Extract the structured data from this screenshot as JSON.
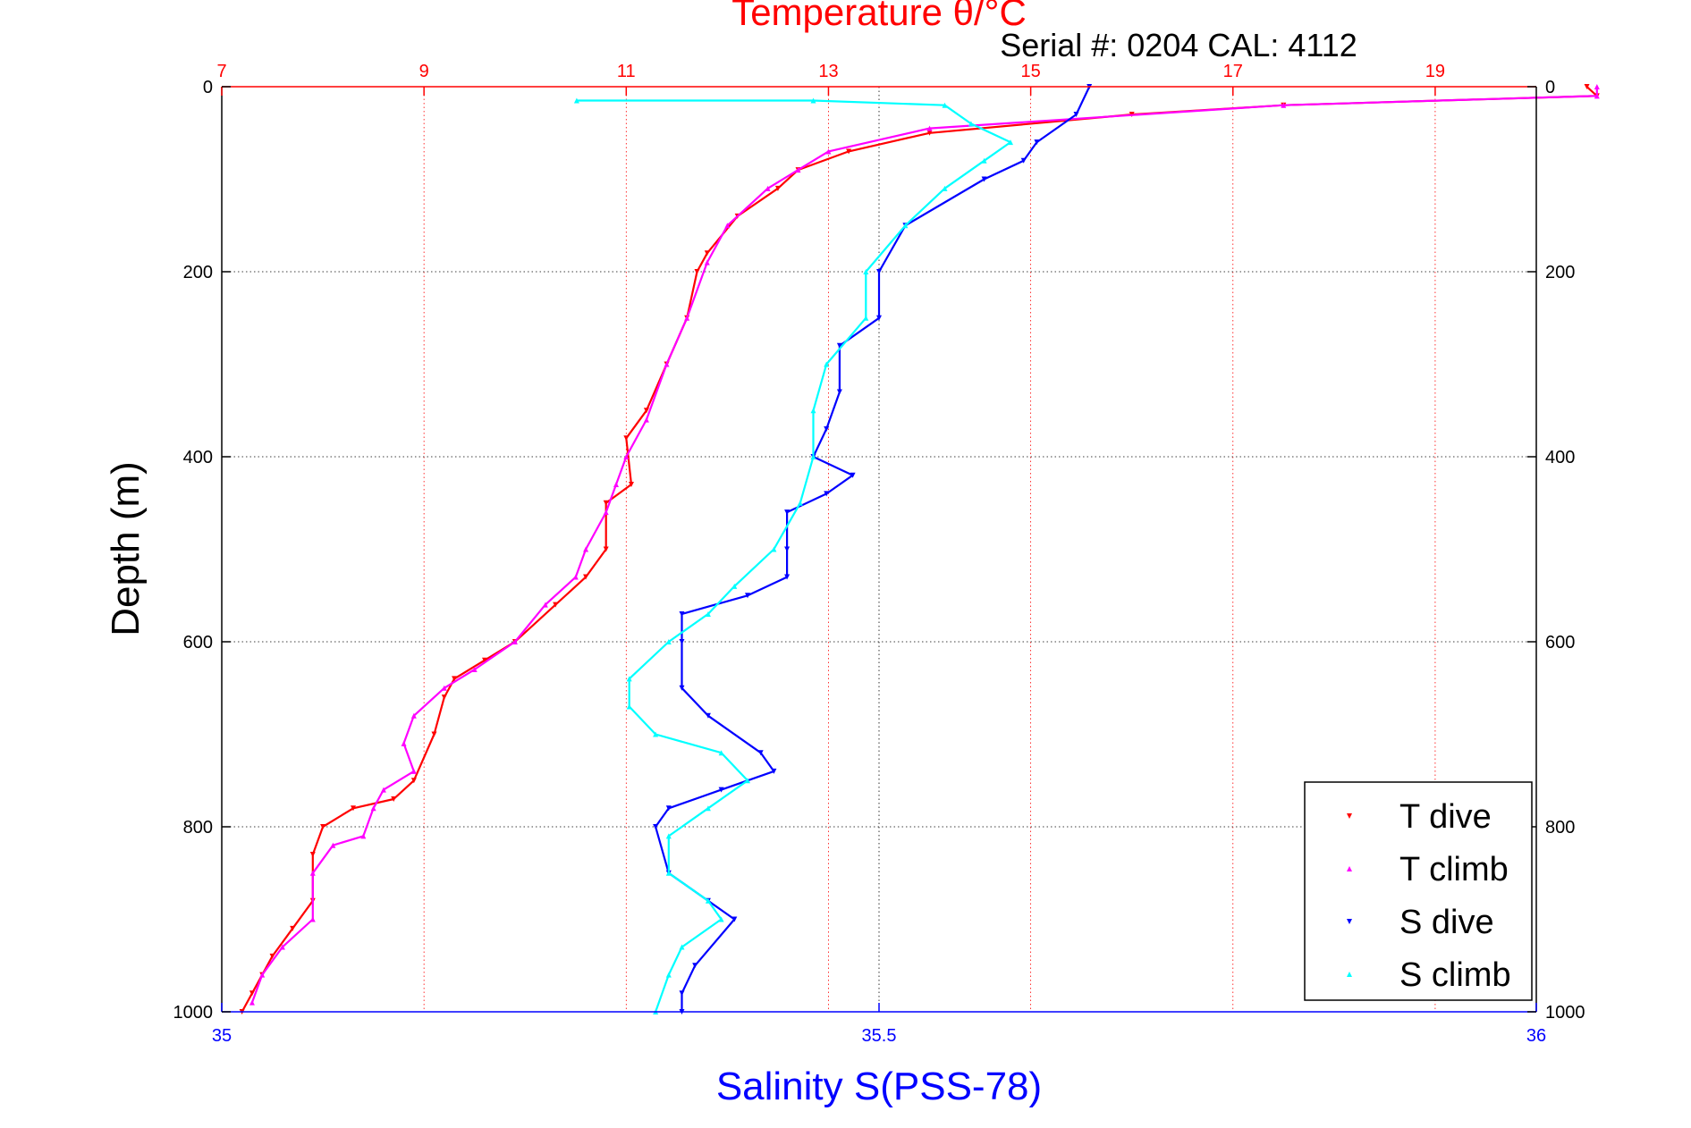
{
  "chart_data": {
    "type": "scatter",
    "title": "Temperature θ/°C",
    "subtitle": "Serial #: 0204  CAL: 4112",
    "xlabel": "Salinity S(PSS-78)",
    "ylabel": "Depth (m)",
    "ylim": [
      1000,
      0
    ],
    "y_ticks": [
      0,
      200,
      400,
      600,
      800,
      1000
    ],
    "top_axis": {
      "label": "Temperature θ/°C",
      "range": [
        7,
        20
      ],
      "ticks": [
        7,
        9,
        11,
        13,
        15,
        17,
        19
      ],
      "color": "#ff0000"
    },
    "bottom_axis": {
      "label": "Salinity S(PSS-78)",
      "range": [
        35,
        36
      ],
      "ticks": [
        35,
        35.5,
        36
      ],
      "color": "#0000ff"
    },
    "grid": true,
    "legend_position": "bottom-right",
    "series": [
      {
        "name": "T dive",
        "axis": "temperature",
        "color": "#ff0000",
        "marker": "triangle-down",
        "points": [
          [
            20.5,
            0
          ],
          [
            20.6,
            10
          ],
          [
            17.5,
            20
          ],
          [
            16.0,
            30
          ],
          [
            14.0,
            50
          ],
          [
            13.2,
            70
          ],
          [
            12.7,
            90
          ],
          [
            12.5,
            110
          ],
          [
            12.1,
            140
          ],
          [
            11.8,
            180
          ],
          [
            11.7,
            200
          ],
          [
            11.6,
            250
          ],
          [
            11.4,
            300
          ],
          [
            11.2,
            350
          ],
          [
            11.0,
            380
          ],
          [
            11.05,
            430
          ],
          [
            10.8,
            450
          ],
          [
            10.8,
            500
          ],
          [
            10.6,
            530
          ],
          [
            10.3,
            560
          ],
          [
            9.9,
            600
          ],
          [
            9.6,
            620
          ],
          [
            9.3,
            640
          ],
          [
            9.2,
            660
          ],
          [
            9.1,
            700
          ],
          [
            8.9,
            750
          ],
          [
            8.7,
            770
          ],
          [
            8.3,
            780
          ],
          [
            8.0,
            800
          ],
          [
            7.9,
            830
          ],
          [
            7.9,
            880
          ],
          [
            7.7,
            910
          ],
          [
            7.5,
            940
          ],
          [
            7.4,
            960
          ],
          [
            7.3,
            980
          ],
          [
            7.2,
            1000
          ]
        ]
      },
      {
        "name": "T climb",
        "axis": "temperature",
        "color": "#ff00ff",
        "marker": "triangle-up",
        "points": [
          [
            20.6,
            0
          ],
          [
            20.6,
            10
          ],
          [
            17.5,
            20
          ],
          [
            14.0,
            45
          ],
          [
            13.0,
            70
          ],
          [
            12.7,
            90
          ],
          [
            12.4,
            110
          ],
          [
            12.0,
            150
          ],
          [
            11.8,
            190
          ],
          [
            11.6,
            250
          ],
          [
            11.4,
            300
          ],
          [
            11.2,
            360
          ],
          [
            11.0,
            400
          ],
          [
            10.9,
            430
          ],
          [
            10.8,
            460
          ],
          [
            10.6,
            500
          ],
          [
            10.5,
            530
          ],
          [
            10.2,
            560
          ],
          [
            9.9,
            600
          ],
          [
            9.5,
            630
          ],
          [
            9.2,
            650
          ],
          [
            8.9,
            680
          ],
          [
            8.8,
            710
          ],
          [
            8.9,
            740
          ],
          [
            8.6,
            760
          ],
          [
            8.5,
            780
          ],
          [
            8.4,
            810
          ],
          [
            8.1,
            820
          ],
          [
            7.9,
            850
          ],
          [
            7.9,
            900
          ],
          [
            7.6,
            930
          ],
          [
            7.4,
            960
          ],
          [
            7.3,
            990
          ]
        ]
      },
      {
        "name": "S dive",
        "axis": "salinity",
        "color": "#0000ff",
        "marker": "triangle-down",
        "points": [
          [
            35.66,
            0
          ],
          [
            35.65,
            30
          ],
          [
            35.62,
            60
          ],
          [
            35.61,
            80
          ],
          [
            35.58,
            100
          ],
          [
            35.52,
            150
          ],
          [
            35.5,
            200
          ],
          [
            35.5,
            250
          ],
          [
            35.47,
            280
          ],
          [
            35.47,
            330
          ],
          [
            35.46,
            370
          ],
          [
            35.45,
            400
          ],
          [
            35.48,
            420
          ],
          [
            35.46,
            440
          ],
          [
            35.43,
            460
          ],
          [
            35.43,
            500
          ],
          [
            35.43,
            530
          ],
          [
            35.4,
            550
          ],
          [
            35.35,
            570
          ],
          [
            35.35,
            600
          ],
          [
            35.35,
            650
          ],
          [
            35.37,
            680
          ],
          [
            35.41,
            720
          ],
          [
            35.42,
            740
          ],
          [
            35.38,
            760
          ],
          [
            35.34,
            780
          ],
          [
            35.33,
            800
          ],
          [
            35.34,
            850
          ],
          [
            35.37,
            880
          ],
          [
            35.39,
            900
          ],
          [
            35.36,
            950
          ],
          [
            35.35,
            980
          ],
          [
            35.35,
            1000
          ]
        ]
      },
      {
        "name": "S climb",
        "axis": "salinity",
        "color": "#00ffff",
        "marker": "triangle-up",
        "points": [
          [
            35.27,
            15
          ],
          [
            35.45,
            15
          ],
          [
            35.55,
            20
          ],
          [
            35.57,
            40
          ],
          [
            35.6,
            60
          ],
          [
            35.58,
            80
          ],
          [
            35.55,
            110
          ],
          [
            35.52,
            150
          ],
          [
            35.49,
            200
          ],
          [
            35.49,
            250
          ],
          [
            35.46,
            300
          ],
          [
            35.45,
            350
          ],
          [
            35.45,
            400
          ],
          [
            35.44,
            450
          ],
          [
            35.42,
            500
          ],
          [
            35.39,
            540
          ],
          [
            35.37,
            570
          ],
          [
            35.34,
            600
          ],
          [
            35.31,
            640
          ],
          [
            35.31,
            670
          ],
          [
            35.33,
            700
          ],
          [
            35.38,
            720
          ],
          [
            35.4,
            750
          ],
          [
            35.37,
            780
          ],
          [
            35.34,
            810
          ],
          [
            35.34,
            850
          ],
          [
            35.37,
            880
          ],
          [
            35.38,
            900
          ],
          [
            35.35,
            930
          ],
          [
            35.34,
            960
          ],
          [
            35.33,
            1000
          ]
        ]
      }
    ]
  },
  "tick_labels": {
    "top": [
      "7",
      "9",
      "11",
      "13",
      "15",
      "17",
      "19"
    ],
    "bottom": [
      "35",
      "35.5",
      "36"
    ],
    "side": [
      "0",
      "200",
      "400",
      "600",
      "800",
      "1000"
    ]
  },
  "legend": [
    "T dive",
    "T climb",
    "S dive",
    "S climb"
  ],
  "colors": {
    "temperature_axis": "#ff0000",
    "salinity_axis": "#0000ff",
    "frame": "#000000",
    "grid": "#000000"
  }
}
